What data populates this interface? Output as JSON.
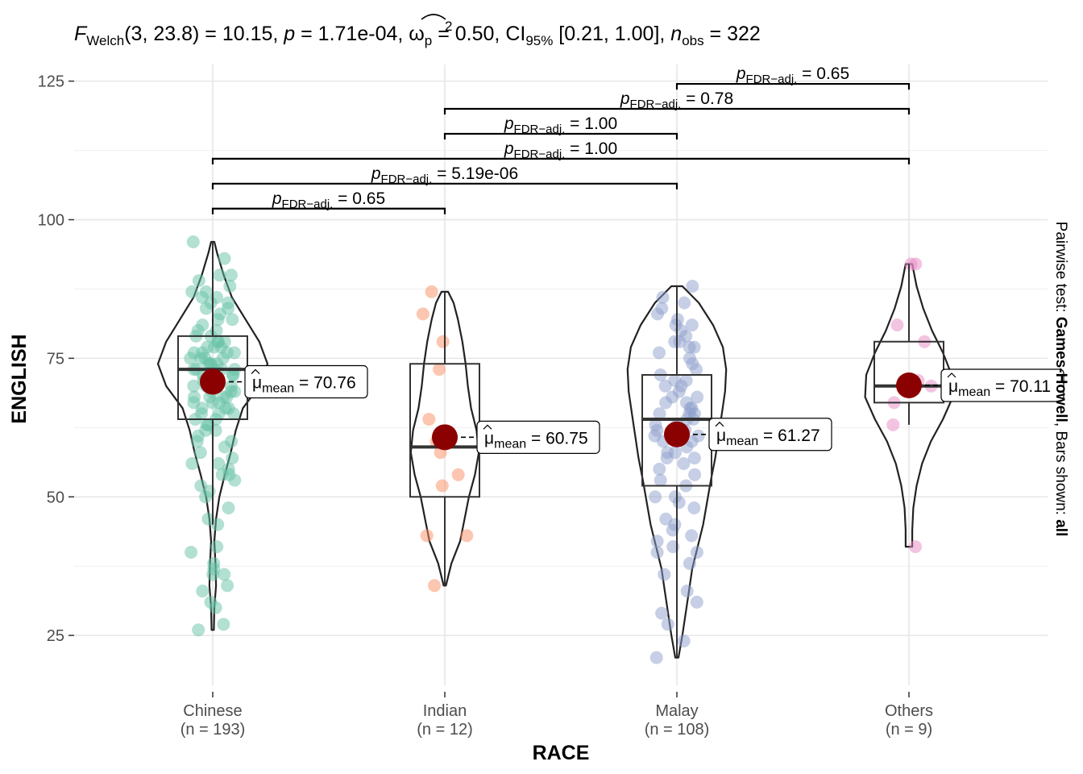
{
  "chart_data": {
    "type": "violin-box-scatter",
    "title": {
      "stat_name": "F",
      "stat_sub": "Welch",
      "df": "(3, 23.8)",
      "stat_value": " = 10.15, ",
      "p_label": "p",
      "p_value": " = 1.71e-04, ",
      "effect_name": "ω",
      "effect_sup": "2",
      "effect_sub": "p",
      "effect_value": " = 0.50, ",
      "ci_label": "CI",
      "ci_sub": "95%",
      "ci_value": " [0.21, 1.00], ",
      "n_label": "n",
      "n_sub": "obs",
      "n_value": " = 322"
    },
    "xlabel": "RACE",
    "ylabel": "ENGLISH",
    "caption": {
      "prefix": "Pairwise test: ",
      "test": "Games-Howell",
      "middle": ", Bars shown: ",
      "bars": "all"
    },
    "ylim": [
      16,
      128
    ],
    "yticks": [
      25,
      50,
      75,
      100,
      125
    ],
    "grid": true,
    "groups": [
      {
        "name": "Chinese",
        "n_label": "(n = 193)",
        "color": "#66c2a5",
        "mean": 70.76,
        "mean_label": "70.76",
        "box": {
          "q1": 64,
          "median": 73,
          "q3": 79,
          "whisker_low": 45,
          "whisker_high": 96
        },
        "violin": [
          [
            26,
            0.02
          ],
          [
            30,
            0.03
          ],
          [
            34,
            0.06
          ],
          [
            38,
            0.05
          ],
          [
            42,
            0.03
          ],
          [
            46,
            0.06
          ],
          [
            50,
            0.12
          ],
          [
            54,
            0.22
          ],
          [
            58,
            0.33
          ],
          [
            62,
            0.42
          ],
          [
            66,
            0.55
          ],
          [
            70,
            0.85
          ],
          [
            74,
            1.0
          ],
          [
            78,
            0.85
          ],
          [
            82,
            0.6
          ],
          [
            86,
            0.35
          ],
          [
            90,
            0.2
          ],
          [
            94,
            0.08
          ],
          [
            96,
            0.03
          ]
        ],
        "points": [
          26,
          27,
          30,
          31,
          33,
          34,
          36,
          36,
          37,
          38,
          40,
          41,
          45,
          46,
          48,
          50,
          51,
          52,
          53,
          54,
          54,
          55,
          56,
          56,
          57,
          58,
          59,
          60,
          60,
          61,
          62,
          62,
          63,
          63,
          64,
          64,
          65,
          65,
          65,
          66,
          66,
          66,
          67,
          67,
          67,
          68,
          68,
          68,
          68,
          69,
          69,
          69,
          70,
          70,
          70,
          70,
          71,
          71,
          71,
          71,
          72,
          72,
          72,
          72,
          73,
          73,
          73,
          73,
          73,
          74,
          74,
          74,
          74,
          75,
          75,
          75,
          75,
          76,
          76,
          76,
          76,
          77,
          77,
          77,
          78,
          78,
          78,
          79,
          79,
          80,
          80,
          81,
          82,
          82,
          83,
          84,
          84,
          85,
          85,
          86,
          86,
          87,
          87,
          88,
          89,
          90,
          90,
          93,
          96
        ]
      },
      {
        "name": "Indian",
        "n_label": "(n = 12)",
        "color": "#fc8d62",
        "mean": 60.75,
        "mean_label": "60.75",
        "box": {
          "q1": 50,
          "median": 59,
          "q3": 74,
          "whisker_low": 34,
          "whisker_high": 87
        },
        "violin": [
          [
            34,
            0.02
          ],
          [
            38,
            0.12
          ],
          [
            42,
            0.28
          ],
          [
            46,
            0.36
          ],
          [
            50,
            0.44
          ],
          [
            54,
            0.55
          ],
          [
            58,
            0.62
          ],
          [
            62,
            0.58
          ],
          [
            66,
            0.48
          ],
          [
            70,
            0.42
          ],
          [
            74,
            0.38
          ],
          [
            78,
            0.32
          ],
          [
            82,
            0.24
          ],
          [
            85,
            0.16
          ],
          [
            87,
            0.06
          ]
        ],
        "points": [
          34,
          43,
          43,
          52,
          54,
          58,
          60,
          64,
          73,
          78,
          83,
          87
        ]
      },
      {
        "name": "Malay",
        "n_label": "(n = 108)",
        "color": "#8da0cb",
        "mean": 61.27,
        "mean_label": "61.27",
        "box": {
          "q1": 52,
          "median": 64,
          "q3": 72,
          "whisker_low": 21,
          "whisker_high": 88
        },
        "violin": [
          [
            21,
            0.03
          ],
          [
            25,
            0.1
          ],
          [
            29,
            0.16
          ],
          [
            33,
            0.22
          ],
          [
            37,
            0.28
          ],
          [
            41,
            0.38
          ],
          [
            45,
            0.48
          ],
          [
            49,
            0.55
          ],
          [
            53,
            0.62
          ],
          [
            57,
            0.7
          ],
          [
            61,
            0.76
          ],
          [
            65,
            0.82
          ],
          [
            69,
            0.88
          ],
          [
            73,
            0.9
          ],
          [
            77,
            0.84
          ],
          [
            81,
            0.66
          ],
          [
            85,
            0.4
          ],
          [
            88,
            0.1
          ]
        ],
        "points": [
          21,
          24,
          27,
          29,
          31,
          33,
          36,
          38,
          40,
          40,
          41,
          42,
          43,
          44,
          45,
          46,
          48,
          49,
          50,
          50,
          52,
          53,
          54,
          55,
          56,
          57,
          57,
          58,
          58,
          59,
          60,
          60,
          61,
          61,
          62,
          62,
          63,
          63,
          64,
          64,
          65,
          65,
          65,
          66,
          66,
          67,
          67,
          68,
          68,
          69,
          70,
          70,
          71,
          71,
          72,
          73,
          74,
          75,
          76,
          77,
          77,
          78,
          78,
          79,
          80,
          81,
          81,
          82,
          83,
          84,
          85,
          86,
          88
        ]
      },
      {
        "name": "Others",
        "n_label": "(n = 9)",
        "color": "#e78ac3",
        "mean": 70.11,
        "mean_label": "70.11",
        "box": {
          "q1": 67,
          "median": 70,
          "q3": 78,
          "whisker_low": 63,
          "whisker_high": 92
        },
        "violin": [
          [
            41,
            0.06
          ],
          [
            44,
            0.06
          ],
          [
            48,
            0.08
          ],
          [
            52,
            0.14
          ],
          [
            56,
            0.24
          ],
          [
            60,
            0.4
          ],
          [
            64,
            0.62
          ],
          [
            68,
            0.8
          ],
          [
            72,
            0.78
          ],
          [
            76,
            0.62
          ],
          [
            80,
            0.42
          ],
          [
            84,
            0.26
          ],
          [
            88,
            0.14
          ],
          [
            92,
            0.06
          ]
        ],
        "points": [
          41,
          63,
          67,
          70,
          71,
          78,
          81,
          92,
          92
        ]
      }
    ],
    "comparisons": [
      {
        "from": 0,
        "to": 1,
        "y": 102,
        "p_label": "p",
        "p_sub": "FDR−adj.",
        "p_value": " = 0.65"
      },
      {
        "from": 0,
        "to": 2,
        "y": 106.5,
        "p_label": "p",
        "p_sub": "FDR−adj.",
        "p_value": " = 5.19e-06"
      },
      {
        "from": 0,
        "to": 3,
        "y": 111,
        "p_label": "p",
        "p_sub": "FDR−adj.",
        "p_value": " = 1.00"
      },
      {
        "from": 1,
        "to": 2,
        "y": 115.5,
        "p_label": "p",
        "p_sub": "FDR−adj.",
        "p_value": " = 1.00"
      },
      {
        "from": 1,
        "to": 3,
        "y": 120,
        "p_label": "p",
        "p_sub": "FDR−adj.",
        "p_value": " = 0.78"
      },
      {
        "from": 2,
        "to": 3,
        "y": 124.5,
        "p_label": "p",
        "p_sub": "FDR−adj.",
        "p_value": " = 0.65"
      }
    ],
    "mean_label": {
      "symbol": "μ",
      "sub": "mean",
      "eq": " = "
    },
    "mean_color": "#8b0000"
  }
}
